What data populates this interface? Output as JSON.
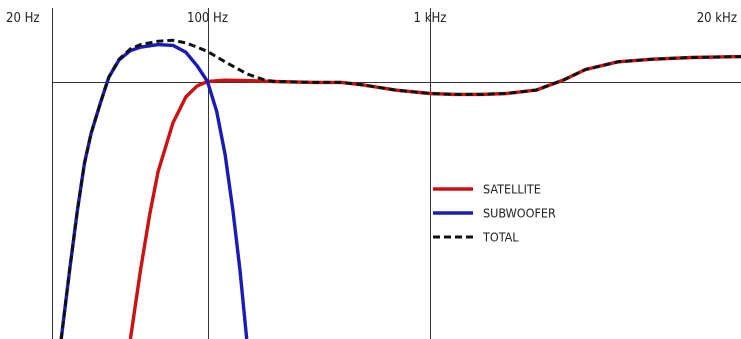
{
  "chart_data": {
    "type": "line",
    "x_scale": "log",
    "x_ticks": [
      {
        "value": 20,
        "label": "20 Hz"
      },
      {
        "value": 100,
        "label": "100 Hz"
      },
      {
        "value": 1000,
        "label": "1 kHz"
      },
      {
        "value": 20000,
        "label": "20 kHz"
      }
    ],
    "xlim": [
      20,
      25000
    ],
    "ylim": [
      -30,
      6
    ],
    "reference_level": 0,
    "grid": true,
    "legend_position": "right-middle",
    "series": [
      {
        "name": "SATELLITE",
        "color": "#cc1111",
        "style": "solid",
        "points": [
          [
            45,
            -30
          ],
          [
            50,
            -22
          ],
          [
            55,
            -15.5
          ],
          [
            60,
            -10.5
          ],
          [
            70,
            -4.8
          ],
          [
            80,
            -1.8
          ],
          [
            90,
            -0.5
          ],
          [
            100,
            0
          ],
          [
            120,
            0.15
          ],
          [
            150,
            0.1
          ],
          [
            200,
            0
          ],
          [
            300,
            -0.1
          ],
          [
            400,
            -0.1
          ],
          [
            500,
            -0.4
          ],
          [
            700,
            -1.0
          ],
          [
            1000,
            -1.4
          ],
          [
            1300,
            -1.5
          ],
          [
            1700,
            -1.5
          ],
          [
            2200,
            -1.4
          ],
          [
            3000,
            -1.0
          ],
          [
            4000,
            0.2
          ],
          [
            5000,
            1.4
          ],
          [
            7000,
            2.3
          ],
          [
            10000,
            2.6
          ],
          [
            15000,
            2.8
          ],
          [
            25000,
            2.9
          ]
        ]
      },
      {
        "name": "SUBWOOFER",
        "color": "#1a1ab8",
        "style": "solid",
        "points": [
          [
            22,
            -30
          ],
          [
            24,
            -22
          ],
          [
            26,
            -15
          ],
          [
            28,
            -9.5
          ],
          [
            30,
            -6
          ],
          [
            33,
            -2.5
          ],
          [
            36,
            0.5
          ],
          [
            40,
            2.5
          ],
          [
            45,
            3.6
          ],
          [
            50,
            4.0
          ],
          [
            60,
            4.3
          ],
          [
            70,
            4.2
          ],
          [
            80,
            3.4
          ],
          [
            90,
            1.8
          ],
          [
            100,
            0
          ],
          [
            110,
            -3.5
          ],
          [
            120,
            -8.5
          ],
          [
            130,
            -15
          ],
          [
            140,
            -22
          ],
          [
            150,
            -30
          ]
        ]
      },
      {
        "name": "TOTAL",
        "color": "#111111",
        "style": "dashed",
        "points": [
          [
            22,
            -30
          ],
          [
            24,
            -22
          ],
          [
            26,
            -15
          ],
          [
            28,
            -9.5
          ],
          [
            30,
            -6
          ],
          [
            33,
            -2.5
          ],
          [
            36,
            0.5
          ],
          [
            40,
            2.6
          ],
          [
            45,
            3.8
          ],
          [
            50,
            4.3
          ],
          [
            60,
            4.7
          ],
          [
            70,
            4.8
          ],
          [
            80,
            4.5
          ],
          [
            90,
            4.0
          ],
          [
            100,
            3.5
          ],
          [
            120,
            2.3
          ],
          [
            150,
            0.9
          ],
          [
            180,
            0.2
          ],
          [
            200,
            0
          ],
          [
            300,
            -0.1
          ],
          [
            400,
            -0.1
          ],
          [
            500,
            -0.4
          ],
          [
            700,
            -1.0
          ],
          [
            1000,
            -1.4
          ],
          [
            1300,
            -1.5
          ],
          [
            1700,
            -1.5
          ],
          [
            2200,
            -1.4
          ],
          [
            3000,
            -1.0
          ],
          [
            4000,
            0.2
          ],
          [
            5000,
            1.4
          ],
          [
            7000,
            2.3
          ],
          [
            10000,
            2.6
          ],
          [
            15000,
            2.8
          ],
          [
            25000,
            2.9
          ]
        ]
      }
    ]
  }
}
